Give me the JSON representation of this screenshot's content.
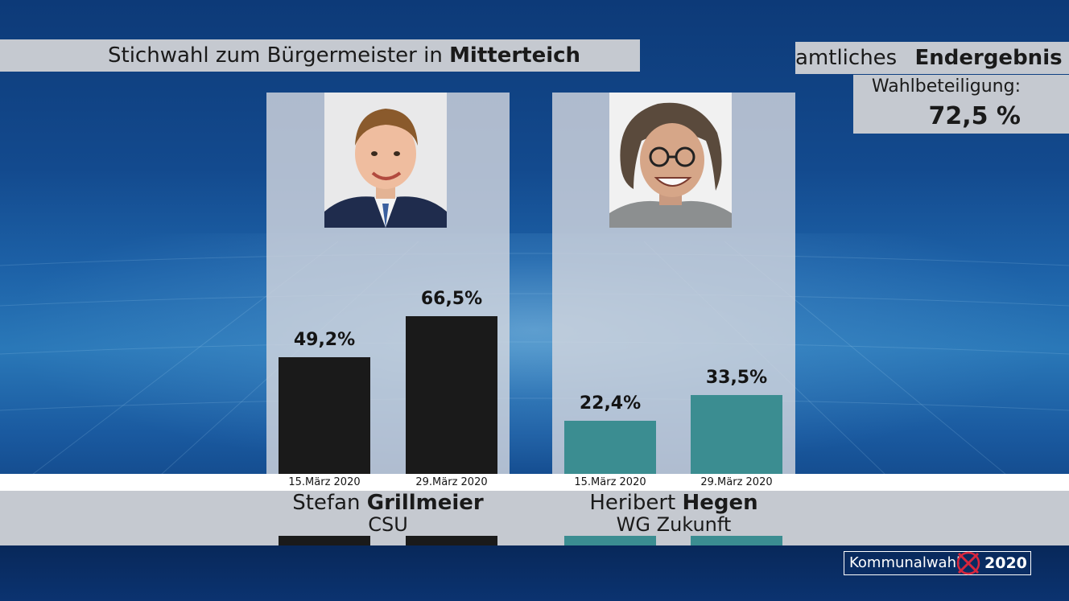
{
  "header": {
    "title_prefix": "Stichwahl zum Bürgermeister in ",
    "title_place": "Mitterteich",
    "status_prefix": "amtliches ",
    "status_bold": "Endergebnis",
    "turnout_label": "Wahlbeteiligung:",
    "turnout_value": "72,5 %"
  },
  "chart_data": {
    "type": "bar",
    "categories": [
      "15.März 2020",
      "29.März 2020"
    ],
    "series": [
      {
        "candidate_first": "Stefan ",
        "candidate_last": "Grillmeier",
        "party": "CSU",
        "color": "#1a1a1a",
        "values": [
          49.2,
          66.5
        ],
        "value_labels": [
          "49,2%",
          "66,5%"
        ]
      },
      {
        "candidate_first": "Heribert ",
        "candidate_last": "Hegen",
        "party": "WG Zukunft",
        "color": "#3b8d91",
        "values": [
          22.4,
          33.5
        ],
        "value_labels": [
          "22,4%",
          "33,5%"
        ]
      }
    ],
    "ylim": [
      0,
      100
    ]
  },
  "footer": {
    "brand_text": "Kommunalwahl",
    "brand_year": "2020",
    "brand_mark_color": "#d7263d"
  }
}
